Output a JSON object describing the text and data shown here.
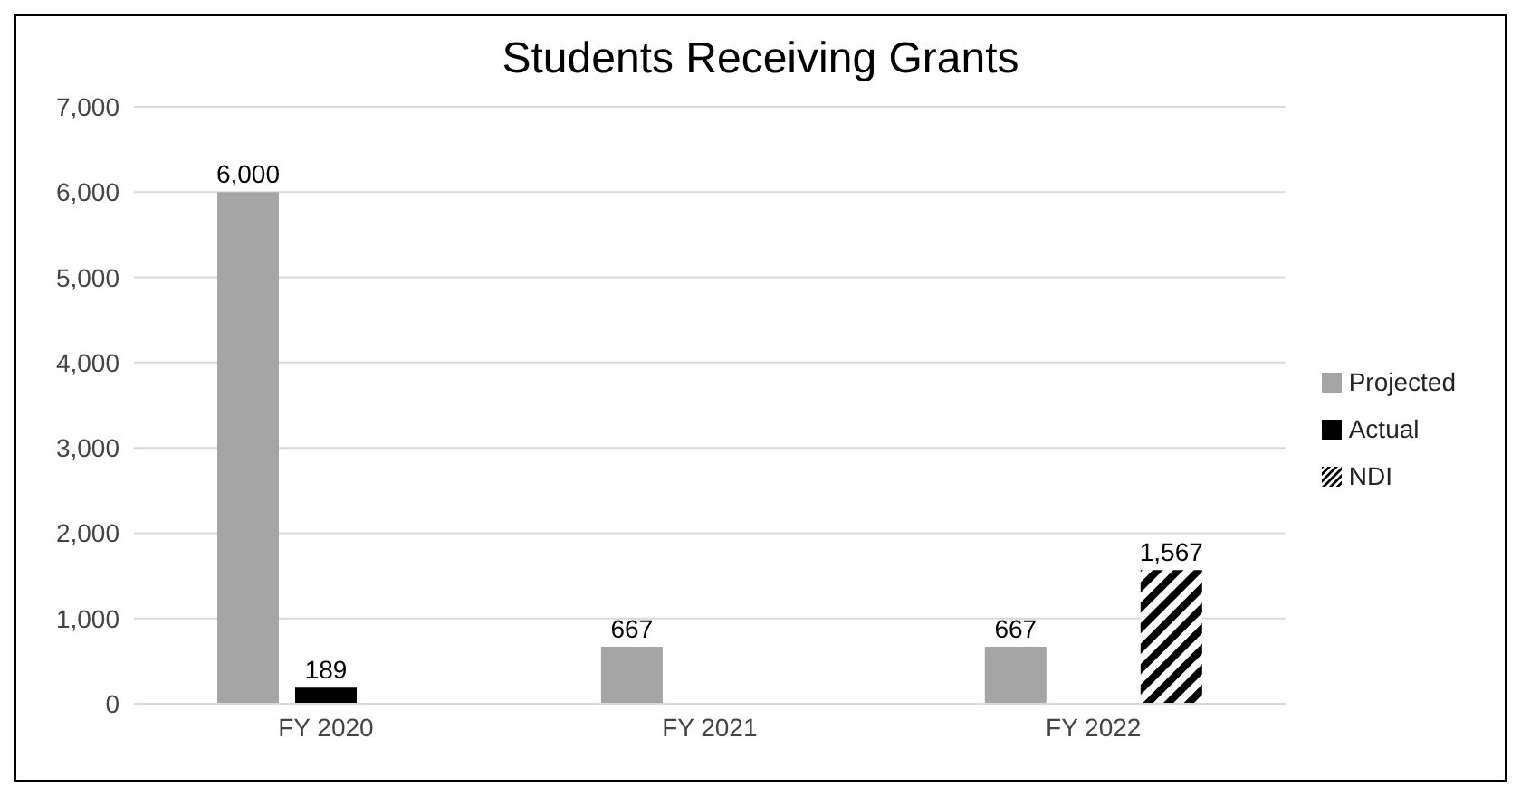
{
  "chart_data": {
    "type": "bar",
    "title": "Students Receiving Grants",
    "categories": [
      "FY 2020",
      "FY 2021",
      "FY 2022"
    ],
    "series": [
      {
        "name": "Projected",
        "color": "#a5a5a5",
        "values": [
          6000,
          667,
          667
        ],
        "value_labels": [
          "6,000",
          "667",
          "667"
        ]
      },
      {
        "name": "Actual",
        "color": "#000000",
        "values": [
          189,
          null,
          null
        ],
        "value_labels": [
          "189",
          null,
          null
        ]
      },
      {
        "name": "NDI",
        "color": "#000000",
        "values": [
          null,
          null,
          1567
        ],
        "value_labels": [
          null,
          null,
          "1,567"
        ]
      }
    ],
    "ylim": [
      0,
      7000
    ],
    "yticks": [
      {
        "value": 0,
        "label": "0"
      },
      {
        "value": 1000,
        "label": "1,000"
      },
      {
        "value": 2000,
        "label": "2,000"
      },
      {
        "value": 3000,
        "label": "3,000"
      },
      {
        "value": 4000,
        "label": "4,000"
      },
      {
        "value": 5000,
        "label": "5,000"
      },
      {
        "value": 6000,
        "label": "6,000"
      },
      {
        "value": 7000,
        "label": "7,000"
      }
    ],
    "grid": "y",
    "legend": "right"
  }
}
